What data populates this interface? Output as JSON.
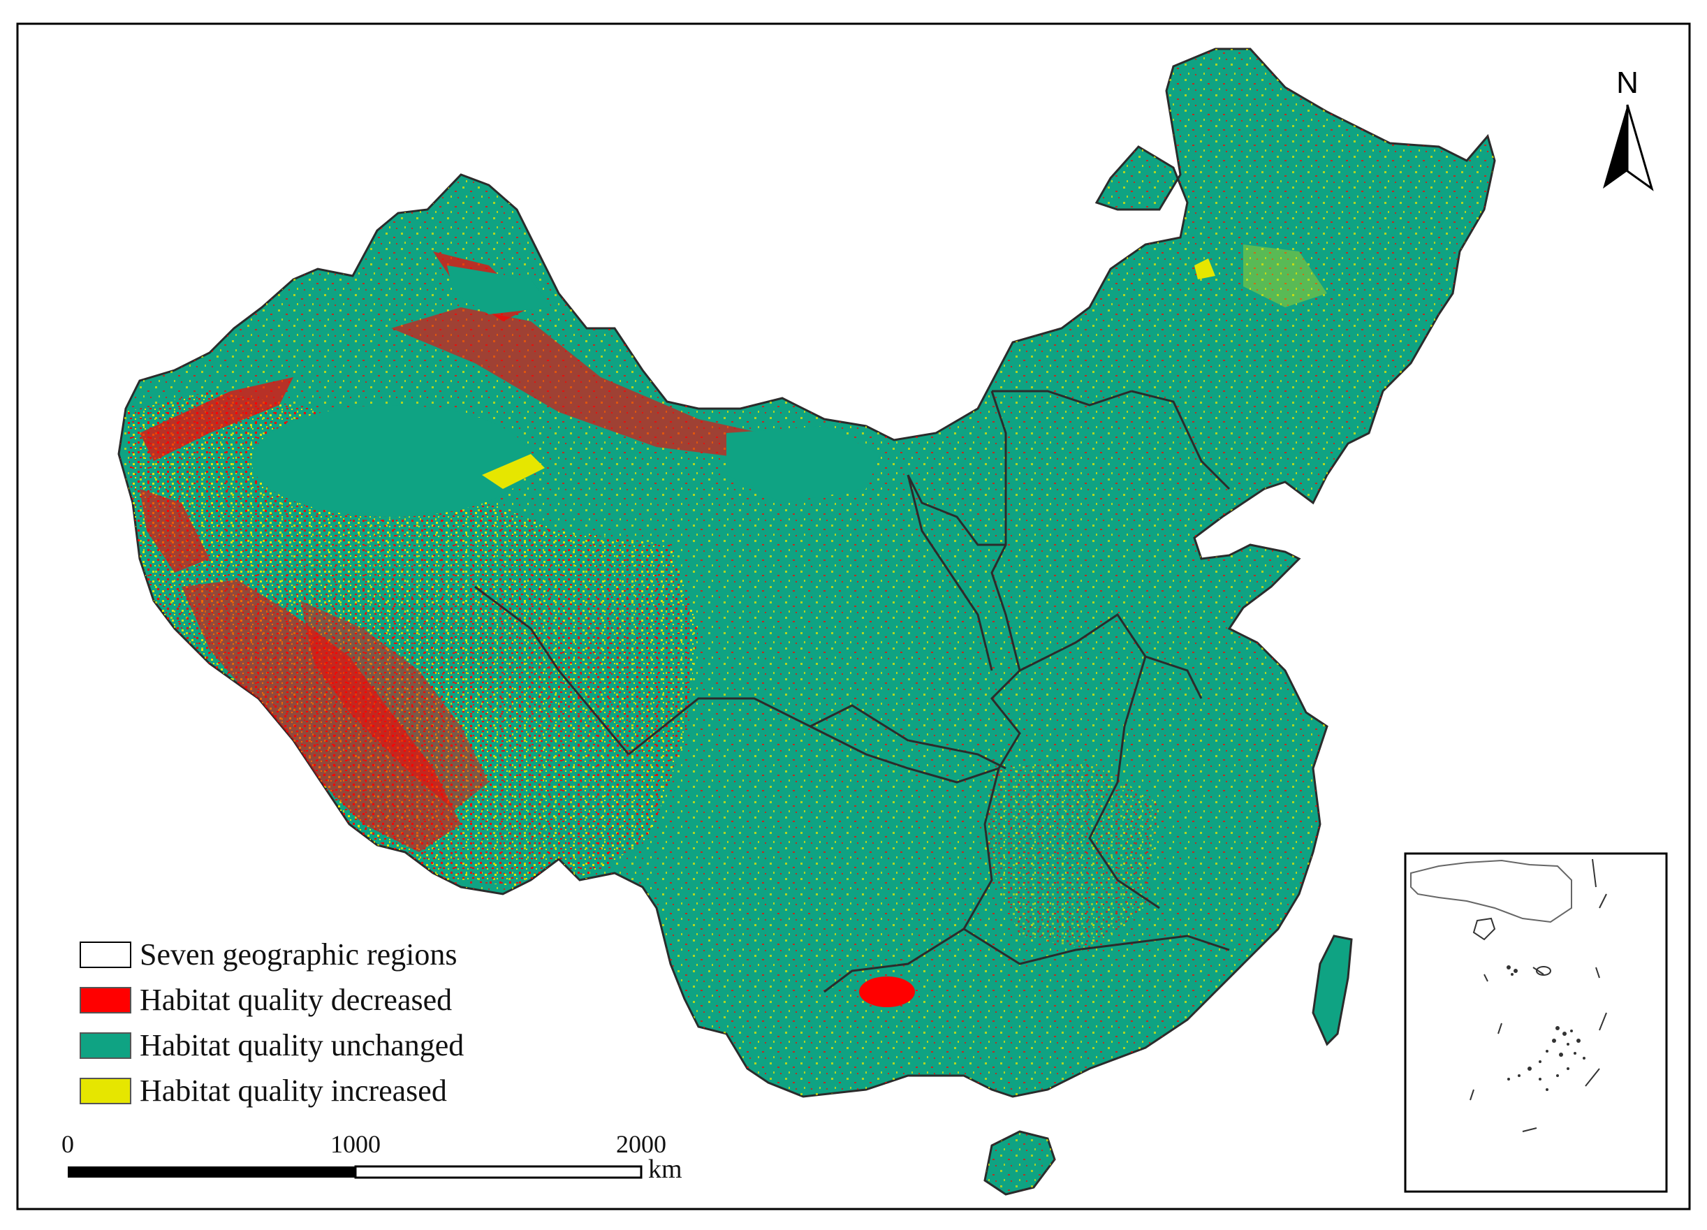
{
  "legend": {
    "items": [
      {
        "label": "Seven geographic regions",
        "swatch": "#ffffff",
        "border": "#000000"
      },
      {
        "label": "Habitat quality decreased",
        "swatch": "#ff0000",
        "border": "#555555"
      },
      {
        "label": "Habitat quality unchanged",
        "swatch": "#0fa383",
        "border": "#555555"
      },
      {
        "label": "Habitat quality increased",
        "swatch": "#e6e600",
        "border": "#555555"
      }
    ]
  },
  "scale_bar": {
    "ticks": [
      "0",
      "1000",
      "2000"
    ],
    "unit": "km"
  },
  "north_arrow": {
    "letter": "N",
    "icon": "north-arrow-icon"
  },
  "inset": {
    "name": "south-china-sea-inset"
  },
  "colors": {
    "decreased": "#ff0000",
    "unchanged": "#0fa383",
    "increased": "#e6e600",
    "boundary": "#2b2b2b"
  }
}
